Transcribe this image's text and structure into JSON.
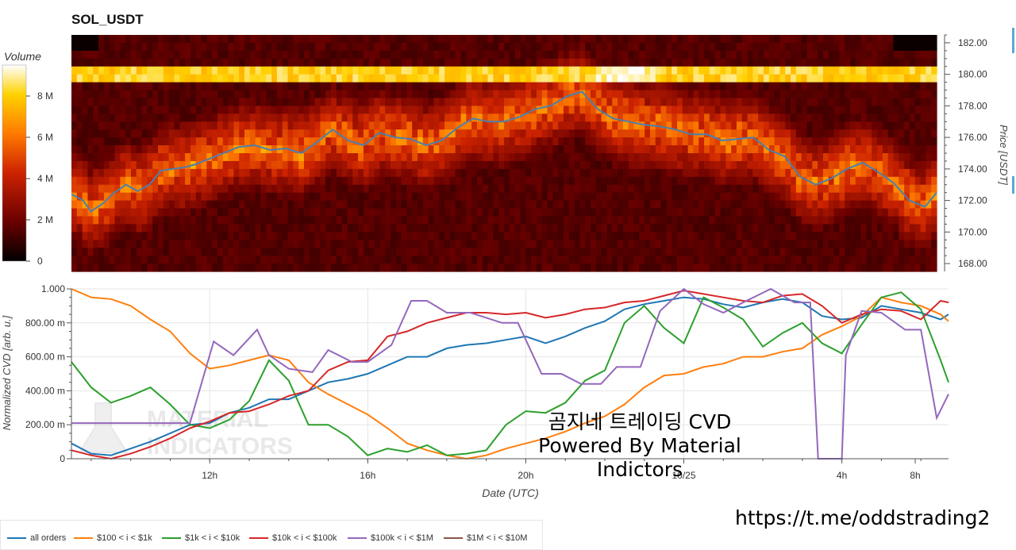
{
  "title": "SOL_USDT",
  "colorbar": {
    "label": "Volume",
    "ticks": [
      "8 M",
      "6 M",
      "4 M",
      "2 M",
      "0"
    ]
  },
  "overlay_text": {
    "line1": "곰지네 트레이딩 CVD",
    "line2": "Powered By Material Indictors"
  },
  "watermark": {
    "line1": "MATERIAL",
    "line2": "INDICATORS"
  },
  "url": "https://t.me/oddstrading2",
  "colors": {
    "all orders": "#1f77b4",
    "$100 < i < $1k": "#ff7f0e",
    "$1k < i < $10k": "#2ca02c",
    "$10k < i < $100k": "#d62728",
    "$100k < i < $1M": "#9467bd",
    "$1M < i < $10M": "#8c564b",
    "price_line": "#4a7fb0"
  },
  "legend": [
    {
      "label": "all orders",
      "color": "#1f77b4"
    },
    {
      "label": "$100 < i < $1k",
      "color": "#ff7f0e"
    },
    {
      "label": "$1k < i < $10k",
      "color": "#2ca02c"
    },
    {
      "label": "$10k < i < $100k",
      "color": "#d62728"
    },
    {
      "label": "$100k < i < $1M",
      "color": "#9467bd"
    },
    {
      "label": "$1M < i < $10M",
      "color": "#8c564b"
    }
  ],
  "chart_data": [
    {
      "type": "heatmap",
      "title": "SOL_USDT",
      "ylabel": "Price [USDT]",
      "ylim": [
        167.5,
        182.5
      ],
      "yticks": [
        "182.00",
        "180.00",
        "178.00",
        "176.00",
        "174.00",
        "172.00",
        "170.00",
        "168.00"
      ],
      "colorbar_label": "Volume",
      "colorbar_range_M": [
        0,
        9.5
      ],
      "x_range_h": [
        8.5,
        30.7
      ],
      "price_line": {
        "x": [
          8.5,
          8.8,
          9.0,
          9.3,
          9.6,
          9.9,
          10.2,
          10.5,
          10.8,
          11.1,
          11.4,
          11.7,
          12.0,
          12.4,
          12.8,
          13.2,
          13.6,
          14.0,
          14.4,
          14.8,
          15.2,
          15.6,
          16.0,
          16.4,
          16.8,
          17.2,
          17.6,
          18.0,
          18.4,
          18.8,
          19.2,
          19.6,
          20.0,
          20.4,
          20.8,
          21.2,
          21.6,
          22.0,
          22.4,
          22.8,
          23.2,
          23.6,
          24.0,
          24.4,
          24.8,
          25.2,
          25.6,
          26.0,
          26.4,
          26.8,
          27.2,
          27.6,
          28.0,
          28.4,
          28.8,
          29.2,
          29.6,
          30.0,
          30.4,
          30.7
        ],
        "y": [
          172.4,
          172.0,
          171.3,
          171.8,
          172.5,
          173.0,
          172.6,
          173.0,
          173.9,
          174.0,
          174.1,
          174.3,
          174.6,
          175.0,
          175.4,
          175.5,
          175.2,
          175.3,
          175.0,
          175.7,
          176.5,
          175.8,
          175.5,
          176.3,
          176.0,
          175.9,
          175.5,
          175.8,
          176.6,
          177.2,
          177.0,
          177.0,
          177.3,
          177.8,
          178.0,
          178.6,
          178.9,
          177.8,
          177.2,
          177.0,
          176.8,
          176.7,
          176.5,
          176.2,
          176.2,
          175.8,
          175.9,
          176.0,
          175.2,
          174.8,
          173.5,
          173.0,
          173.4,
          174.0,
          174.4,
          173.8,
          173.1,
          172.0,
          171.6,
          172.5
        ]
      }
    },
    {
      "type": "line",
      "xlabel": "Date (UTC)",
      "ylabel": "Normalized CVD [arb. u.]",
      "xlim": [
        8.5,
        30.7
      ],
      "ylim": [
        0,
        1
      ],
      "yticks": [
        "1.000",
        "800.00 m",
        "600.00 m",
        "400.00 m",
        "200.00 m",
        "0"
      ],
      "xticks": [
        {
          "value": 12,
          "label": "12h"
        },
        {
          "value": 16,
          "label": "16h"
        },
        {
          "value": 20,
          "label": "20h"
        },
        {
          "value": 24,
          "label": "10/25"
        },
        {
          "value": 28,
          "label": "4h"
        },
        {
          "value": 32,
          "label": "8h"
        }
      ],
      "series": [
        {
          "name": "all orders",
          "x": [
            8.5,
            9.0,
            9.5,
            10.0,
            10.5,
            11.0,
            11.5,
            12.0,
            12.5,
            13.0,
            13.5,
            14.0,
            14.5,
            15.0,
            15.5,
            16.0,
            16.5,
            17.0,
            17.5,
            18.0,
            18.5,
            19.0,
            19.5,
            20.0,
            20.5,
            21.0,
            21.5,
            22.0,
            22.5,
            23.0,
            23.5,
            24.0,
            24.5,
            25.0,
            25.5,
            26.0,
            26.5,
            27.0,
            27.5,
            28.0,
            28.5,
            29.0,
            29.5,
            30.0,
            30.5,
            30.7
          ],
          "y": [
            0.09,
            0.03,
            0.02,
            0.06,
            0.1,
            0.15,
            0.2,
            0.21,
            0.27,
            0.3,
            0.35,
            0.35,
            0.4,
            0.45,
            0.47,
            0.5,
            0.55,
            0.6,
            0.6,
            0.65,
            0.67,
            0.68,
            0.7,
            0.72,
            0.68,
            0.72,
            0.77,
            0.81,
            0.88,
            0.91,
            0.93,
            0.95,
            0.94,
            0.91,
            0.89,
            0.92,
            0.94,
            0.92,
            0.84,
            0.82,
            0.83,
            0.9,
            0.88,
            0.86,
            0.82,
            0.85
          ]
        },
        {
          "name": "$100 < i < $1k",
          "x": [
            8.5,
            9.0,
            9.5,
            10.0,
            10.5,
            11.0,
            11.5,
            12.0,
            12.5,
            13.0,
            13.5,
            14.0,
            14.5,
            15.0,
            15.5,
            16.0,
            16.5,
            17.0,
            17.5,
            18.0,
            18.5,
            19.0,
            19.5,
            20.0,
            20.5,
            21.0,
            21.5,
            22.0,
            22.5,
            23.0,
            23.5,
            24.0,
            24.5,
            25.0,
            25.5,
            26.0,
            26.5,
            27.0,
            27.5,
            28.0,
            28.5,
            29.0,
            29.5,
            30.0,
            30.5,
            30.7
          ],
          "y": [
            1.0,
            0.95,
            0.94,
            0.9,
            0.82,
            0.75,
            0.62,
            0.53,
            0.55,
            0.58,
            0.61,
            0.58,
            0.45,
            0.38,
            0.32,
            0.26,
            0.18,
            0.09,
            0.05,
            0.02,
            0.0,
            0.02,
            0.06,
            0.09,
            0.12,
            0.16,
            0.21,
            0.25,
            0.32,
            0.42,
            0.49,
            0.5,
            0.54,
            0.56,
            0.6,
            0.6,
            0.63,
            0.65,
            0.73,
            0.78,
            0.84,
            0.95,
            0.92,
            0.9,
            0.85,
            0.81
          ]
        },
        {
          "name": "$1k < i < $10k",
          "x": [
            8.5,
            9.0,
            9.5,
            10.0,
            10.5,
            11.0,
            11.5,
            12.0,
            12.5,
            13.0,
            13.5,
            14.0,
            14.5,
            15.0,
            15.5,
            16.0,
            16.5,
            17.0,
            17.5,
            18.0,
            18.5,
            19.0,
            19.5,
            20.0,
            20.5,
            21.0,
            21.5,
            22.0,
            22.5,
            23.0,
            23.5,
            24.0,
            24.5,
            25.0,
            25.5,
            26.0,
            26.5,
            27.0,
            27.5,
            28.0,
            28.5,
            29.0,
            29.5,
            30.0,
            30.5,
            30.7
          ],
          "y": [
            0.57,
            0.42,
            0.33,
            0.37,
            0.42,
            0.32,
            0.2,
            0.18,
            0.23,
            0.34,
            0.58,
            0.46,
            0.2,
            0.2,
            0.13,
            0.02,
            0.06,
            0.04,
            0.08,
            0.02,
            0.03,
            0.05,
            0.2,
            0.28,
            0.27,
            0.33,
            0.46,
            0.52,
            0.8,
            0.9,
            0.77,
            0.68,
            0.95,
            0.89,
            0.82,
            0.66,
            0.74,
            0.8,
            0.68,
            0.62,
            0.79,
            0.95,
            0.98,
            0.88,
            0.58,
            0.45
          ]
        },
        {
          "name": "$10k < i < $100k",
          "x": [
            8.5,
            9.0,
            9.5,
            10.0,
            10.5,
            11.0,
            11.5,
            12.0,
            12.5,
            13.0,
            13.5,
            14.0,
            14.5,
            15.0,
            15.5,
            16.0,
            16.5,
            17.0,
            17.5,
            18.0,
            18.5,
            19.0,
            19.5,
            20.0,
            20.5,
            21.0,
            21.5,
            22.0,
            22.5,
            23.0,
            23.5,
            24.0,
            24.5,
            25.0,
            25.5,
            26.0,
            26.5,
            27.0,
            27.5,
            28.0,
            28.5,
            29.0,
            29.5,
            30.0,
            30.5,
            30.7
          ],
          "y": [
            0.05,
            0.02,
            0.0,
            0.03,
            0.07,
            0.12,
            0.18,
            0.22,
            0.27,
            0.28,
            0.32,
            0.37,
            0.4,
            0.52,
            0.57,
            0.58,
            0.72,
            0.75,
            0.8,
            0.83,
            0.86,
            0.86,
            0.85,
            0.86,
            0.83,
            0.85,
            0.88,
            0.89,
            0.92,
            0.93,
            0.96,
            0.99,
            0.97,
            0.95,
            0.93,
            0.92,
            0.96,
            0.97,
            0.9,
            0.8,
            0.85,
            0.88,
            0.87,
            0.82,
            0.93,
            0.92
          ]
        },
        {
          "name": "$100k < i < $1M",
          "x": [
            8.5,
            11.5,
            11.9,
            12.1,
            12.6,
            13.2,
            13.5,
            14.0,
            14.6,
            15.0,
            15.6,
            16.0,
            16.6,
            17.1,
            17.5,
            18.0,
            18.6,
            19.4,
            19.8,
            20.4,
            20.9,
            21.4,
            21.9,
            22.3,
            22.9,
            23.4,
            24.0,
            24.5,
            25.0,
            25.5,
            26.2,
            26.8,
            27.2,
            27.4,
            27.6,
            27.8,
            28.0,
            28.1,
            28.5,
            29.0,
            29.6,
            30.0,
            30.4,
            30.7
          ],
          "y": [
            0.21,
            0.21,
            0.53,
            0.69,
            0.61,
            0.76,
            0.61,
            0.53,
            0.51,
            0.64,
            0.57,
            0.57,
            0.67,
            0.93,
            0.93,
            0.86,
            0.86,
            0.8,
            0.8,
            0.5,
            0.5,
            0.44,
            0.44,
            0.54,
            0.54,
            0.87,
            1.0,
            0.91,
            0.86,
            0.92,
            1.0,
            0.92,
            0.92,
            0.0,
            0.0,
            0.0,
            0.0,
            0.61,
            0.87,
            0.86,
            0.76,
            0.76,
            0.24,
            0.38
          ]
        },
        {
          "name": "$1M < i < $10M",
          "x": [],
          "y": []
        }
      ]
    }
  ]
}
